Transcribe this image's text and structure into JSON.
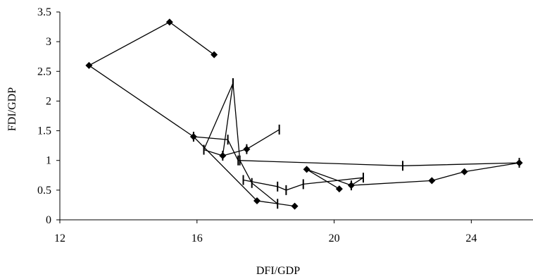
{
  "chart_data": {
    "type": "line",
    "title": "",
    "xlabel": "DFI/GDP",
    "ylabel": "FDI/GDP",
    "xlim": [
      12,
      25.8
    ],
    "ylim": [
      0,
      3.5
    ],
    "x_ticks": [
      12,
      16,
      20,
      24
    ],
    "x_tick_labels": [
      "12",
      "16",
      "20",
      "24"
    ],
    "y_ticks": [
      0,
      0.5,
      1,
      1.5,
      2,
      2.5,
      3,
      3.5
    ],
    "y_tick_labels": [
      "0",
      "0.5",
      "1",
      "1.5",
      "2",
      "2.5",
      "3",
      "3.5"
    ],
    "grid": false,
    "legend": "none",
    "series": [
      {
        "marker": "diamond",
        "color": "#000000",
        "points": [
          [
            16.5,
            2.78
          ],
          [
            15.2,
            3.33
          ],
          [
            12.85,
            2.6
          ],
          [
            15.9,
            1.4
          ],
          [
            17.75,
            0.32
          ],
          [
            18.85,
            0.23
          ]
        ]
      },
      {
        "marker": "diamond",
        "color": "#000000",
        "points": [
          [
            16.75,
            1.08
          ],
          [
            17.45,
            1.19
          ]
        ]
      },
      {
        "marker": "diamond",
        "color": "#000000",
        "points": [
          [
            20.15,
            0.52
          ],
          [
            19.2,
            0.85
          ],
          [
            20.5,
            0.58
          ],
          [
            22.85,
            0.66
          ],
          [
            23.8,
            0.81
          ],
          [
            25.4,
            0.96
          ]
        ]
      },
      {
        "marker": "dash",
        "color": "#000000",
        "points": [
          [
            15.9,
            1.4
          ],
          [
            16.9,
            1.35
          ],
          [
            17.2,
            1.0
          ],
          [
            22.0,
            0.91
          ],
          [
            25.4,
            0.96
          ]
        ]
      },
      {
        "marker": "dash",
        "color": "#000000",
        "points": [
          [
            17.35,
            0.67
          ],
          [
            18.35,
            0.56
          ],
          [
            18.6,
            0.5
          ],
          [
            19.1,
            0.6
          ],
          [
            20.85,
            0.71
          ],
          [
            20.5,
            0.58
          ]
        ]
      },
      {
        "marker": "dash",
        "color": "#000000",
        "points": [
          [
            17.05,
            2.3
          ],
          [
            16.2,
            1.18
          ],
          [
            16.75,
            1.08
          ],
          [
            17.05,
            2.3
          ],
          [
            17.25,
            1.0
          ],
          [
            17.6,
            0.62
          ],
          [
            18.35,
            0.27
          ]
        ]
      },
      {
        "marker": "dash",
        "color": "#000000",
        "points": [
          [
            17.45,
            1.19
          ],
          [
            18.4,
            1.52
          ]
        ]
      }
    ]
  }
}
